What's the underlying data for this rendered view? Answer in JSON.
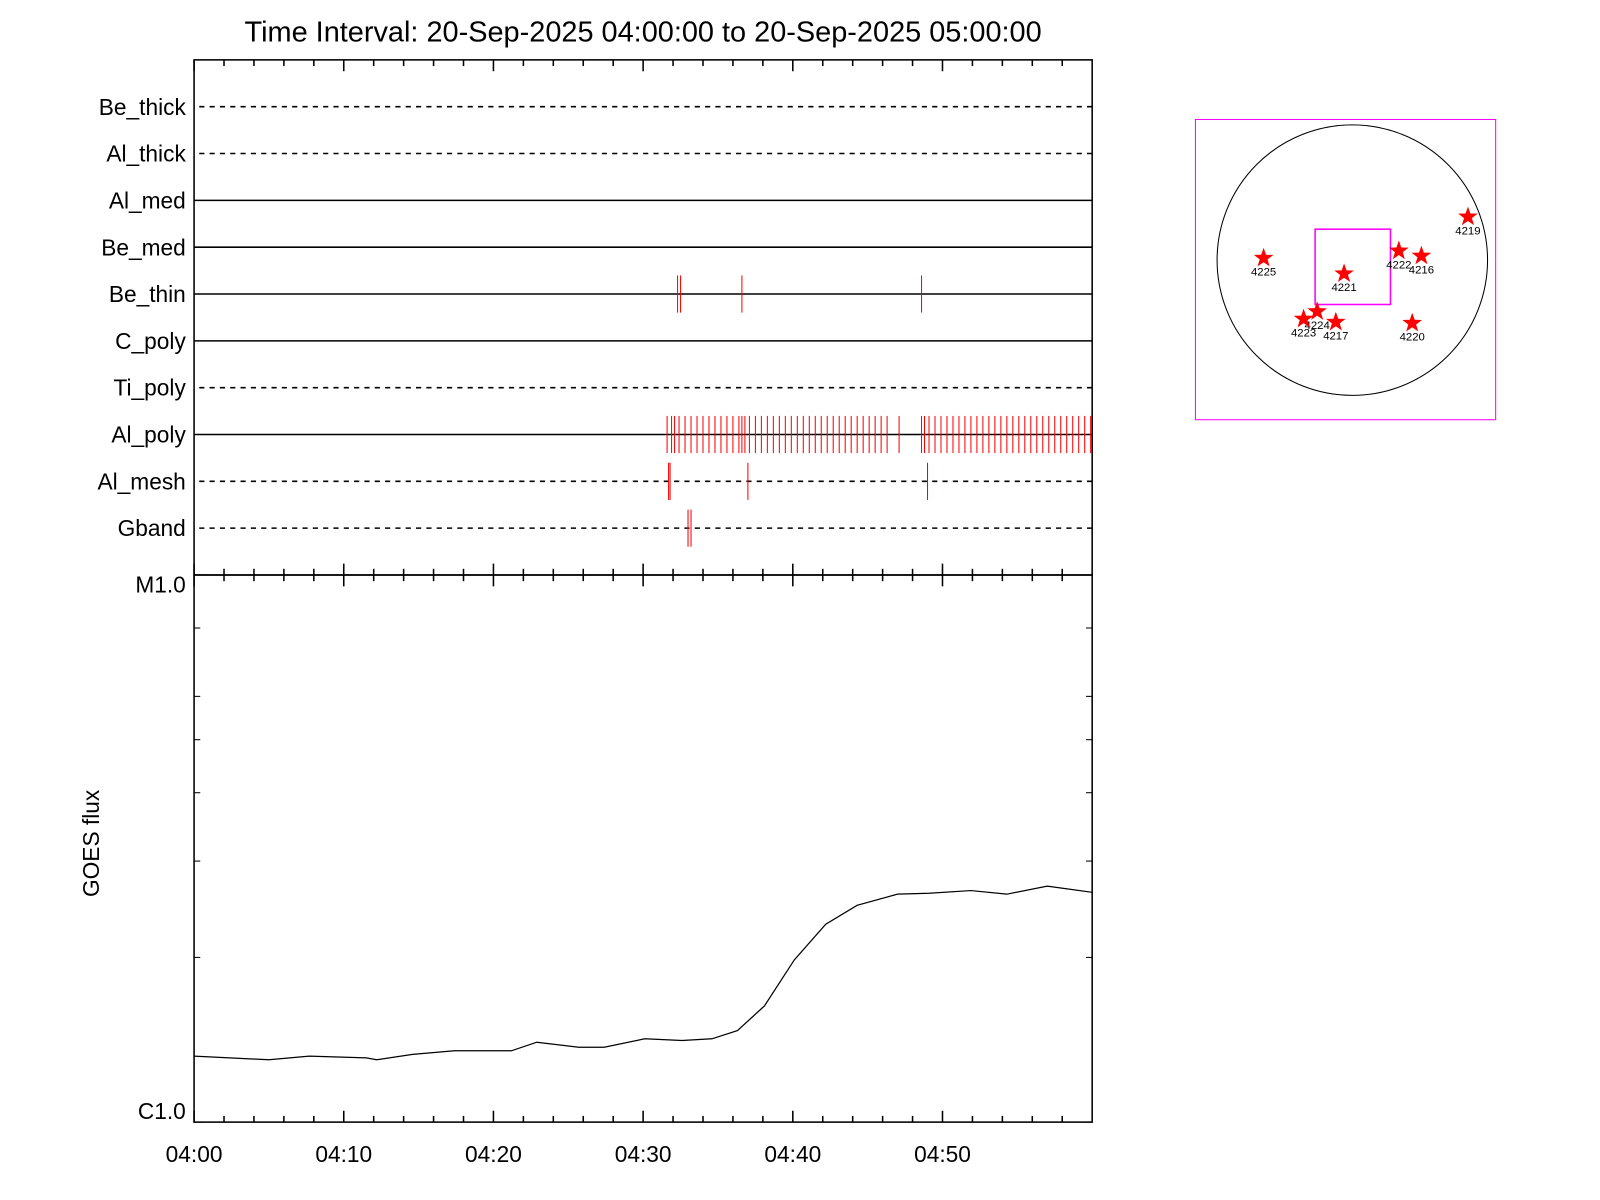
{
  "chart_data": [
    {
      "type": "event",
      "title": "Time Interval: 20-Sep-2025 04:00:00 to 20-Sep-2025 05:00:00",
      "event_color": "#ff0000",
      "detectors": [
        {
          "name": "Be_thick",
          "style": "dashed",
          "events": []
        },
        {
          "name": "Al_thick",
          "style": "dashed",
          "events": []
        },
        {
          "name": "Al_med",
          "style": "solid",
          "events": []
        },
        {
          "name": "Be_med",
          "style": "solid",
          "events": []
        },
        {
          "name": "Be_thin",
          "style": "solid",
          "events": [
            32.3,
            32.5,
            36.6,
            48.6
          ]
        },
        {
          "name": "C_poly",
          "style": "solid",
          "events": []
        },
        {
          "name": "Ti_poly",
          "style": "dashed",
          "events": []
        },
        {
          "name": "Al_poly",
          "style": "solid",
          "events": [
            31.6,
            31.9,
            32.1,
            32.4,
            32.8,
            33.2,
            33.6,
            34.0,
            34.4,
            34.8,
            35.2,
            35.6,
            36.0,
            36.4,
            36.6,
            36.8,
            37.1,
            37.5,
            37.9,
            38.3,
            38.7,
            39.1,
            39.5,
            39.9,
            40.3,
            40.7,
            41.1,
            41.5,
            41.9,
            42.3,
            42.7,
            43.1,
            43.5,
            43.9,
            44.3,
            44.7,
            45.1,
            45.5,
            45.9,
            46.3,
            47.1,
            48.6,
            48.8,
            49.1,
            49.5,
            49.9,
            50.3,
            50.7,
            51.1,
            51.5,
            51.9,
            52.3,
            52.7,
            53.1,
            53.5,
            53.9,
            54.3,
            54.7,
            55.1,
            55.5,
            55.9,
            56.3,
            56.7,
            57.1,
            57.5,
            57.9,
            58.3,
            58.7,
            59.1,
            59.5,
            59.9
          ]
        },
        {
          "name": "Al_mesh",
          "style": "dashed",
          "events": [
            31.7,
            31.8,
            37.0,
            49.0
          ]
        },
        {
          "name": "Gband",
          "style": "dashed",
          "events": [
            33.0,
            33.2
          ]
        }
      ]
    },
    {
      "type": "line",
      "ylabel": "GOES flux",
      "color": "#000000",
      "log_y": true,
      "xlim": [
        0,
        60
      ],
      "xticks": [
        {
          "value": 0,
          "label": "04:00"
        },
        {
          "value": 10,
          "label": "04:10"
        },
        {
          "value": 20,
          "label": "04:20"
        },
        {
          "value": 30,
          "label": "04:30"
        },
        {
          "value": 40,
          "label": "04:40"
        },
        {
          "value": 50,
          "label": "04:50"
        }
      ],
      "xminor": [
        2,
        4,
        6,
        8,
        12,
        14,
        16,
        18,
        22,
        24,
        26,
        28,
        32,
        34,
        36,
        38,
        42,
        44,
        46,
        48,
        52,
        54,
        56,
        58
      ],
      "ylim": [
        1e-06,
        1e-05
      ],
      "yticks": [
        {
          "value": 1e-05,
          "label": "M1.0"
        },
        {
          "value": 1e-06,
          "label": "C1.0"
        }
      ],
      "yminor": [
        2e-06,
        3e-06,
        4e-06,
        5e-06,
        6e-06,
        8e-06
      ],
      "x": [
        0,
        5.0,
        7.7,
        11.5,
        12.2,
        14.6,
        17.4,
        21.2,
        22.9,
        25.7,
        27.4,
        30.1,
        32.6,
        34.6,
        36.3,
        38.1,
        40.1,
        42.2,
        44.3,
        47.0,
        49.1,
        51.9,
        54.3,
        57.0,
        60
      ],
      "values": [
        1.32e-06,
        1.3e-06,
        1.32e-06,
        1.31e-06,
        1.3e-06,
        1.33e-06,
        1.35e-06,
        1.35e-06,
        1.4e-06,
        1.37e-06,
        1.37e-06,
        1.42e-06,
        1.41e-06,
        1.42e-06,
        1.47e-06,
        1.63e-06,
        1.98e-06,
        2.3e-06,
        2.49e-06,
        2.61e-06,
        2.62e-06,
        2.65e-06,
        2.61e-06,
        2.7e-06,
        2.63e-06
      ]
    },
    {
      "type": "map",
      "xlim": [
        -1.16,
        1.06
      ],
      "ylim": [
        -1.18,
        1.04
      ],
      "box_color": "#ff00ff",
      "marker_color": "#ff0000",
      "fov": {
        "xlim": [
          -0.275,
          0.282
        ],
        "ylim": [
          -0.328,
          0.229
        ]
      },
      "regions": [
        {
          "label": "4219",
          "x": 0.855,
          "y": 0.32
        },
        {
          "label": "4225",
          "x": -0.656,
          "y": 0.015
        },
        {
          "label": "4221",
          "x": -0.061,
          "y": -0.1
        },
        {
          "label": "4222",
          "x": 0.344,
          "y": 0.069
        },
        {
          "label": "4216",
          "x": 0.511,
          "y": 0.031
        },
        {
          "label": "4224",
          "x": -0.26,
          "y": -0.38
        },
        {
          "label": "4223",
          "x": -0.36,
          "y": -0.435
        },
        {
          "label": "4217",
          "x": -0.122,
          "y": -0.458
        },
        {
          "label": "4220",
          "x": 0.443,
          "y": -0.466
        }
      ]
    }
  ]
}
